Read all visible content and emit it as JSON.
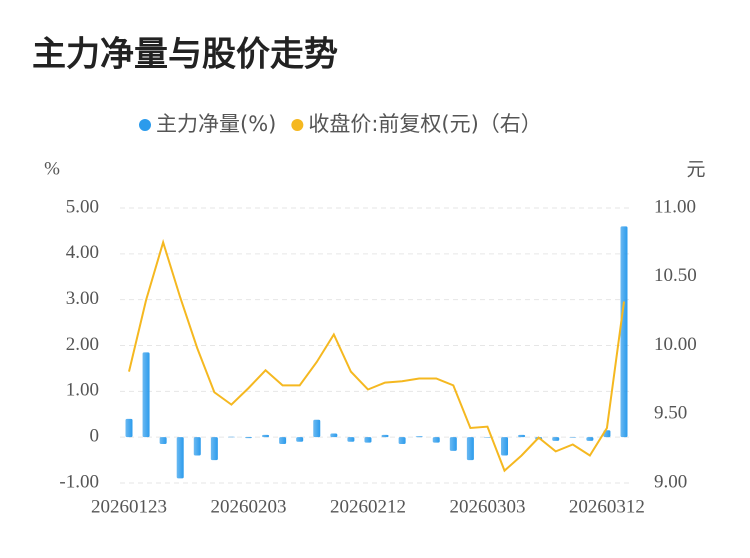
{
  "chart_data": {
    "type": "bar+line",
    "title": "主力净量与股价走势",
    "y_label": "%",
    "y2_label": "元",
    "categories": [
      "20260123",
      null,
      null,
      null,
      null,
      null,
      null,
      "20260203",
      null,
      null,
      null,
      null,
      null,
      null,
      "20260212",
      null,
      null,
      null,
      null,
      null,
      null,
      "20260303",
      null,
      null,
      null,
      null,
      null,
      null,
      "20260312",
      null
    ],
    "series": [
      {
        "name": "主力净量(%)",
        "type": "bar",
        "color": "#2b9bec",
        "axis": "y",
        "values": [
          0.4,
          1.85,
          -0.15,
          -0.9,
          -0.4,
          -0.5,
          0.01,
          -0.02,
          0.05,
          -0.15,
          -0.1,
          0.38,
          0.08,
          -0.1,
          -0.12,
          0.05,
          -0.15,
          0.02,
          -0.12,
          -0.3,
          -0.5,
          0,
          -0.4,
          0.05,
          -0.05,
          -0.08,
          0,
          -0.08,
          0.15,
          4.6
        ]
      },
      {
        "name": "收盘价:前复权(元)（右）",
        "type": "line",
        "color": "#f5b820",
        "axis": "y2",
        "values": [
          9.81,
          10.33,
          10.75,
          10.35,
          9.98,
          9.66,
          9.57,
          9.69,
          9.82,
          9.71,
          9.71,
          9.88,
          10.08,
          9.81,
          9.68,
          9.73,
          9.74,
          9.76,
          9.76,
          9.71,
          9.4,
          9.41,
          9.09,
          9.2,
          9.33,
          9.23,
          9.28,
          9.2,
          9.4,
          10.32
        ]
      }
    ],
    "ylim": [
      -1,
      5
    ],
    "yticks": [
      {
        "value": -1,
        "label": "-1.00"
      },
      0,
      {
        "value": 1,
        "label": "1.00"
      },
      {
        "value": 2,
        "label": "2.00"
      },
      {
        "value": 3,
        "label": "3.00"
      },
      {
        "value": 4,
        "label": "4.00"
      },
      {
        "value": 5,
        "label": "5.00"
      }
    ],
    "y2lim": [
      9,
      11
    ],
    "y2ticks": [
      {
        "value": 9,
        "label": "9.00"
      },
      {
        "value": 9.5,
        "label": "9.50"
      },
      {
        "value": 10,
        "label": "10.00"
      },
      {
        "value": 10.5,
        "label": "10.50"
      },
      {
        "value": 11,
        "label": "11.00"
      }
    ],
    "grid": true,
    "legend": "top"
  }
}
